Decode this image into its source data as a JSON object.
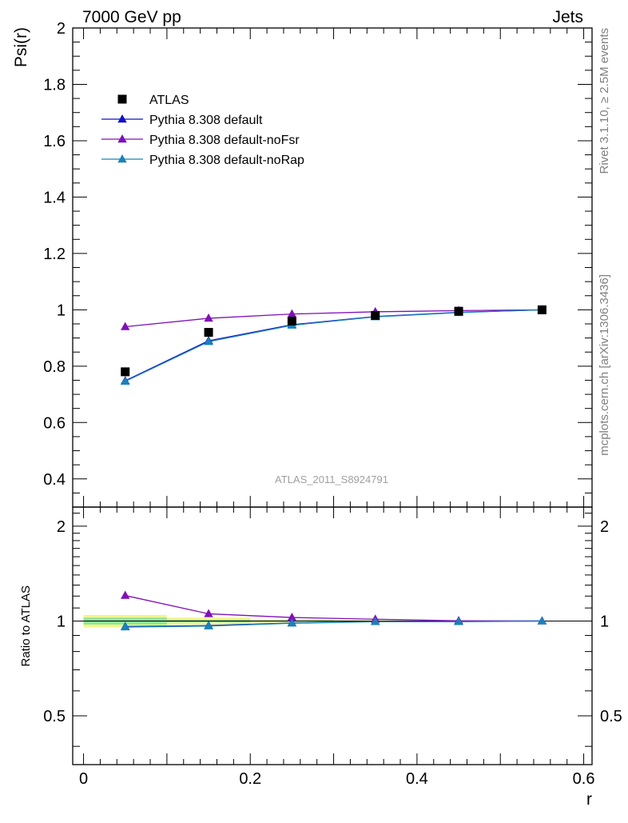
{
  "header": {
    "left": "7000 GeV pp",
    "right": "Jets"
  },
  "side_text": {
    "rivet": "Rivet 3.1.10, ≥ 2.5M events",
    "mcplots": "mcplots.cern.ch [arXiv:1306.3436]"
  },
  "watermark": "ATLAS_2011_S8924791",
  "chart_data": {
    "type": "line",
    "x": [
      0.05,
      0.15,
      0.25,
      0.35,
      0.45,
      0.55
    ],
    "xlabel": "r",
    "xlim": [
      -0.013,
      0.61
    ],
    "xticks": [
      0,
      0.2,
      0.4,
      0.6
    ],
    "xtick_labels": [
      "0",
      "0.2",
      "0.4",
      "0.6"
    ],
    "main": {
      "ylabel": "Psi(r)",
      "ylim": [
        0.3,
        2.0
      ],
      "yticks": [
        0.4,
        0.6,
        0.8,
        1.0,
        1.2,
        1.4,
        1.6,
        1.8,
        2.0
      ],
      "ytick_labels": [
        "0.4",
        "0.6",
        "0.8",
        "1",
        "1.2",
        "1.4",
        "1.6",
        "1.8",
        "2"
      ],
      "data": {
        "name": "ATLAS",
        "values": [
          0.78,
          0.92,
          0.96,
          0.98,
          0.995,
          1.0
        ]
      },
      "series": [
        {
          "name": "Pythia 8.308 default",
          "color": "#1010c8",
          "marker": "triangle",
          "values": [
            0.748,
            0.89,
            0.947,
            0.976,
            0.991,
            1.0
          ]
        },
        {
          "name": "Pythia 8.308 default-noFsr",
          "color": "#8010b8",
          "marker": "triangle",
          "values": [
            0.94,
            0.97,
            0.985,
            0.993,
            0.997,
            1.0
          ]
        },
        {
          "name": "Pythia 8.308 default-noRap",
          "color": "#1a82b8",
          "marker": "triangle",
          "values": [
            0.746,
            0.887,
            0.945,
            0.975,
            0.99,
            1.0
          ]
        }
      ],
      "legend_placement": "top-left"
    },
    "ratio": {
      "ylabel": "Ratio to ATLAS",
      "ylim": [
        0.35,
        2.3
      ],
      "yticks": [
        0.5,
        1,
        2
      ],
      "ytick_labels": [
        "0.5",
        "1",
        "2"
      ],
      "band": {
        "x_ranges": [
          [
            0.0,
            0.1
          ],
          [
            0.1,
            0.2
          ],
          [
            0.2,
            0.3
          ],
          [
            0.3,
            0.4
          ],
          [
            0.4,
            0.5
          ],
          [
            0.5,
            0.6
          ]
        ],
        "outer": [
          [
            0.955,
            1.045
          ],
          [
            0.975,
            1.025
          ],
          [
            0.988,
            1.012
          ],
          [
            0.994,
            1.006
          ],
          [
            0.997,
            1.003
          ],
          [
            0.999,
            1.001
          ]
        ],
        "inner": [
          [
            0.975,
            1.025
          ],
          [
            0.99,
            1.01
          ],
          [
            0.995,
            1.005
          ],
          [
            0.997,
            1.003
          ],
          [
            0.999,
            1.001
          ],
          [
            0.9995,
            1.0005
          ]
        ],
        "outer_color": "#f2f58a",
        "inner_color": "#8fe39c"
      },
      "series": [
        {
          "name": "Pythia 8.308 default",
          "color": "#1010c8",
          "values": [
            0.96,
            0.967,
            0.986,
            0.996,
            0.997,
            1.0
          ]
        },
        {
          "name": "Pythia 8.308 default-noFsr",
          "color": "#8010b8",
          "values": [
            1.205,
            1.054,
            1.026,
            1.013,
            1.002,
            1.0
          ]
        },
        {
          "name": "Pythia 8.308 default-noRap",
          "color": "#1a82b8",
          "values": [
            0.957,
            0.964,
            0.984,
            0.995,
            0.995,
            1.0
          ]
        }
      ]
    }
  }
}
